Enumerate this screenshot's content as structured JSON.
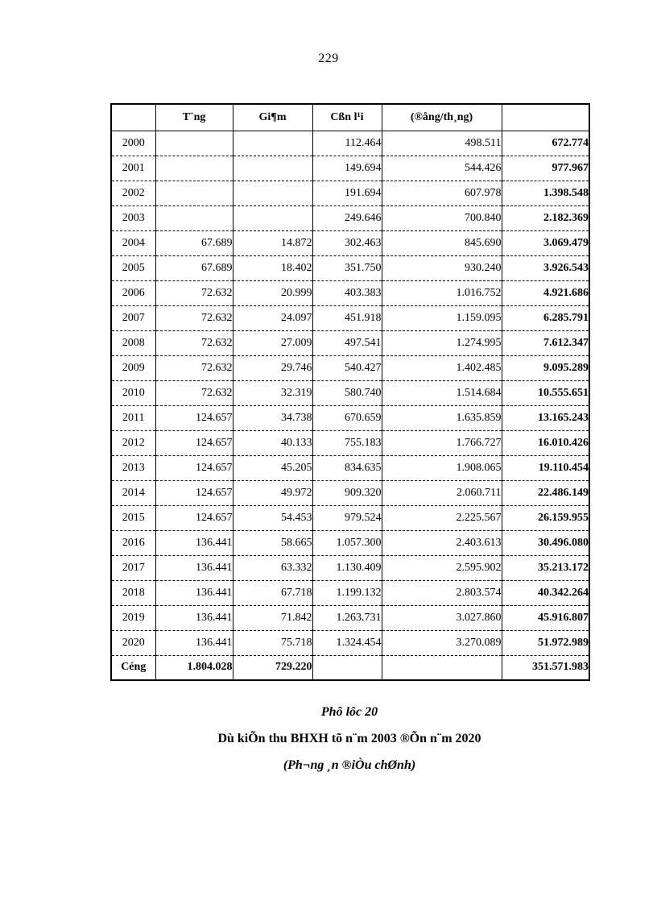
{
  "page": {
    "number": "229"
  },
  "table": {
    "headers": [
      "",
      "T¨ng",
      "Gi¶m",
      "Cßn l¹i",
      "(®ång/th¸ng)",
      ""
    ],
    "rows": [
      {
        "year": "2000",
        "tang": "",
        "giam": "",
        "con_lai": "112.464",
        "dong_thang": "498.511",
        "total": "672.774"
      },
      {
        "year": "2001",
        "tang": "",
        "giam": "",
        "con_lai": "149.694",
        "dong_thang": "544.426",
        "total": "977.967"
      },
      {
        "year": "2002",
        "tang": "",
        "giam": "",
        "con_lai": "191.694",
        "dong_thang": "607.978",
        "total": "1.398.548"
      },
      {
        "year": "2003",
        "tang": "",
        "giam": "",
        "con_lai": "249.646",
        "dong_thang": "700.840",
        "total": "2.182.369"
      },
      {
        "year": "2004",
        "tang": "67.689",
        "giam": "14.872",
        "con_lai": "302.463",
        "dong_thang": "845.690",
        "total": "3.069.479"
      },
      {
        "year": "2005",
        "tang": "67.689",
        "giam": "18.402",
        "con_lai": "351.750",
        "dong_thang": "930.240",
        "total": "3.926.543"
      },
      {
        "year": "2006",
        "tang": "72.632",
        "giam": "20.999",
        "con_lai": "403.383",
        "dong_thang": "1.016.752",
        "total": "4.921.686"
      },
      {
        "year": "2007",
        "tang": "72.632",
        "giam": "24.097",
        "con_lai": "451.918",
        "dong_thang": "1.159.095",
        "total": "6.285.791"
      },
      {
        "year": "2008",
        "tang": "72.632",
        "giam": "27.009",
        "con_lai": "497.541",
        "dong_thang": "1.274.995",
        "total": "7.612.347"
      },
      {
        "year": "2009",
        "tang": "72.632",
        "giam": "29.746",
        "con_lai": "540.427",
        "dong_thang": "1.402.485",
        "total": "9.095.289"
      },
      {
        "year": "2010",
        "tang": "72.632",
        "giam": "32.319",
        "con_lai": "580.740",
        "dong_thang": "1.514.684",
        "total": "10.555.651"
      },
      {
        "year": "2011",
        "tang": "124.657",
        "giam": "34.738",
        "con_lai": "670.659",
        "dong_thang": "1.635.859",
        "total": "13.165.243"
      },
      {
        "year": "2012",
        "tang": "124.657",
        "giam": "40.133",
        "con_lai": "755.183",
        "dong_thang": "1.766.727",
        "total": "16.010.426"
      },
      {
        "year": "2013",
        "tang": "124.657",
        "giam": "45.205",
        "con_lai": "834.635",
        "dong_thang": "1.908.065",
        "total": "19.110.454"
      },
      {
        "year": "2014",
        "tang": "124.657",
        "giam": "49.972",
        "con_lai": "909.320",
        "dong_thang": "2.060.711",
        "total": "22.486.149"
      },
      {
        "year": "2015",
        "tang": "124.657",
        "giam": "54.453",
        "con_lai": "979.524",
        "dong_thang": "2.225.567",
        "total": "26.159.955"
      },
      {
        "year": "2016",
        "tang": "136.441",
        "giam": "58.665",
        "con_lai": "1.057.300",
        "dong_thang": "2.403.613",
        "total": "30.496.080"
      },
      {
        "year": "2017",
        "tang": "136.441",
        "giam": "63.332",
        "con_lai": "1.130.409",
        "dong_thang": "2.595.902",
        "total": "35.213.172"
      },
      {
        "year": "2018",
        "tang": "136.441",
        "giam": "67.718",
        "con_lai": "1.199.132",
        "dong_thang": "2.803.574",
        "total": "40.342.264"
      },
      {
        "year": "2019",
        "tang": "136.441",
        "giam": "71.842",
        "con_lai": "1.263.731",
        "dong_thang": "3.027.860",
        "total": "45.916.807"
      },
      {
        "year": "2020",
        "tang": "136.441",
        "giam": "75.718",
        "con_lai": "1.324.454",
        "dong_thang": "3.270.089",
        "total": "51.972.989"
      }
    ],
    "total_row": {
      "label": "Céng",
      "tang": "1.804.028",
      "giam": "729.220",
      "con_lai": "",
      "dong_thang": "",
      "total": "351.571.983"
    }
  },
  "captions": {
    "line1": "Phô lôc 20",
    "line2": "Dù kiÕn thu BHXH tõ n¨m 2003 ®Õn n¨m 2020",
    "line3": "(Ph¬ng ¸n ®iÒu chØnh)"
  }
}
